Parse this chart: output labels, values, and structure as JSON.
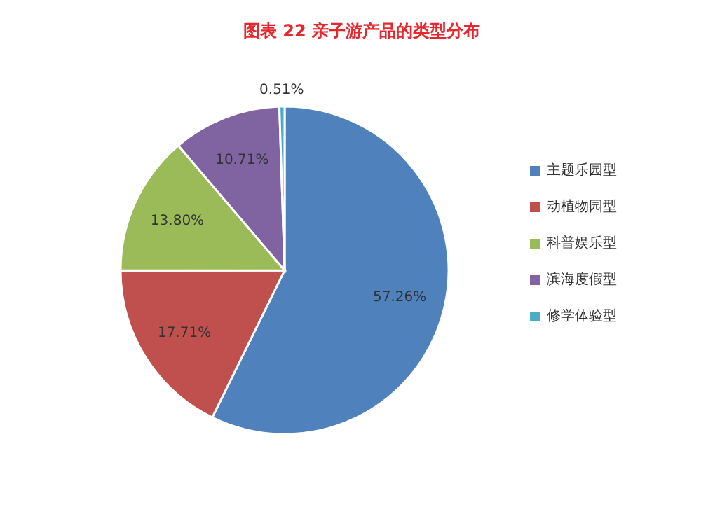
{
  "chart_data": {
    "type": "pie",
    "title": "图表  22  亲子游产品的类型分布",
    "categories": [
      "主题乐园型",
      "动植物园型",
      "科普娱乐型",
      "滨海度假型",
      "修学体验型"
    ],
    "values": [
      57.26,
      17.71,
      13.8,
      10.71,
      0.51
    ],
    "colors": [
      "#4f81bd",
      "#c0504d",
      "#9bbb59",
      "#8064a2",
      "#4bacc6"
    ],
    "value_labels": [
      "57.26%",
      "17.71%",
      "13.80%",
      "10.71%",
      "0.51%"
    ],
    "legend": "right"
  }
}
